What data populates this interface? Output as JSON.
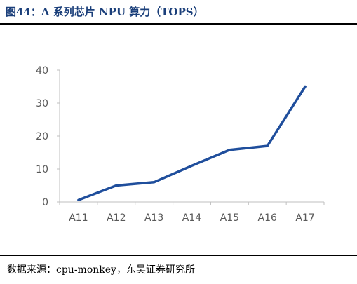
{
  "figure_title": "图44：A 系列芯片 NPU 算力（TOPS）",
  "source_note": "数据来源：cpu-monkey，东吴证券研究所",
  "chart_data": {
    "type": "line",
    "categories": [
      "A11",
      "A12",
      "A13",
      "A14",
      "A15",
      "A16",
      "A17"
    ],
    "series": [
      {
        "values": [
          0.6,
          5,
          6,
          11,
          15.8,
          17,
          35
        ],
        "color": "#1f4e9c"
      }
    ],
    "ylim": [
      0,
      40
    ],
    "yticks": [
      0,
      10,
      20,
      30,
      40
    ],
    "grid": false,
    "legend": "none"
  }
}
